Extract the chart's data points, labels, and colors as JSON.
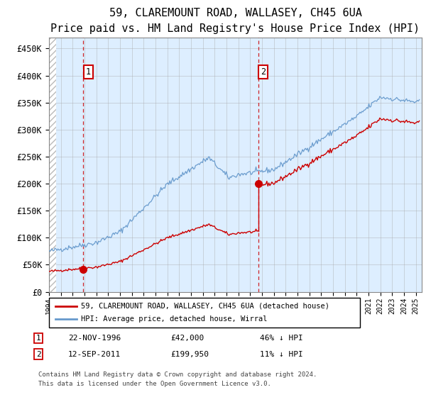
{
  "title": "59, CLAREMOUNT ROAD, WALLASEY, CH45 6UA",
  "subtitle": "Price paid vs. HM Land Registry's House Price Index (HPI)",
  "legend_line1": "59, CLAREMOUNT ROAD, WALLASEY, CH45 6UA (detached house)",
  "legend_line2": "HPI: Average price, detached house, Wirral",
  "footer": "Contains HM Land Registry data © Crown copyright and database right 2024.\nThis data is licensed under the Open Government Licence v3.0.",
  "sale1_x": 1996.9,
  "sale1_y": 42000,
  "sale2_x": 2011.7,
  "sale2_y": 199950,
  "xmin": 1994,
  "xmax": 2025.5,
  "ymin": 0,
  "ymax": 470000,
  "yticks": [
    0,
    50000,
    100000,
    150000,
    200000,
    250000,
    300000,
    350000,
    400000,
    450000
  ],
  "ytick_labels": [
    "£0",
    "£50K",
    "£100K",
    "£150K",
    "£200K",
    "£250K",
    "£300K",
    "£350K",
    "£400K",
    "£450K"
  ],
  "bg_color": "#ddeeff",
  "grid_color": "#aaaaaa",
  "sale_color": "#cc0000",
  "hpi_color": "#6699cc",
  "title_fontsize": 11,
  "ann1_date": "22-NOV-1996",
  "ann1_price": "£42,000",
  "ann1_note": "46% ↓ HPI",
  "ann2_date": "12-SEP-2011",
  "ann2_price": "£199,950",
  "ann2_note": "11% ↓ HPI"
}
